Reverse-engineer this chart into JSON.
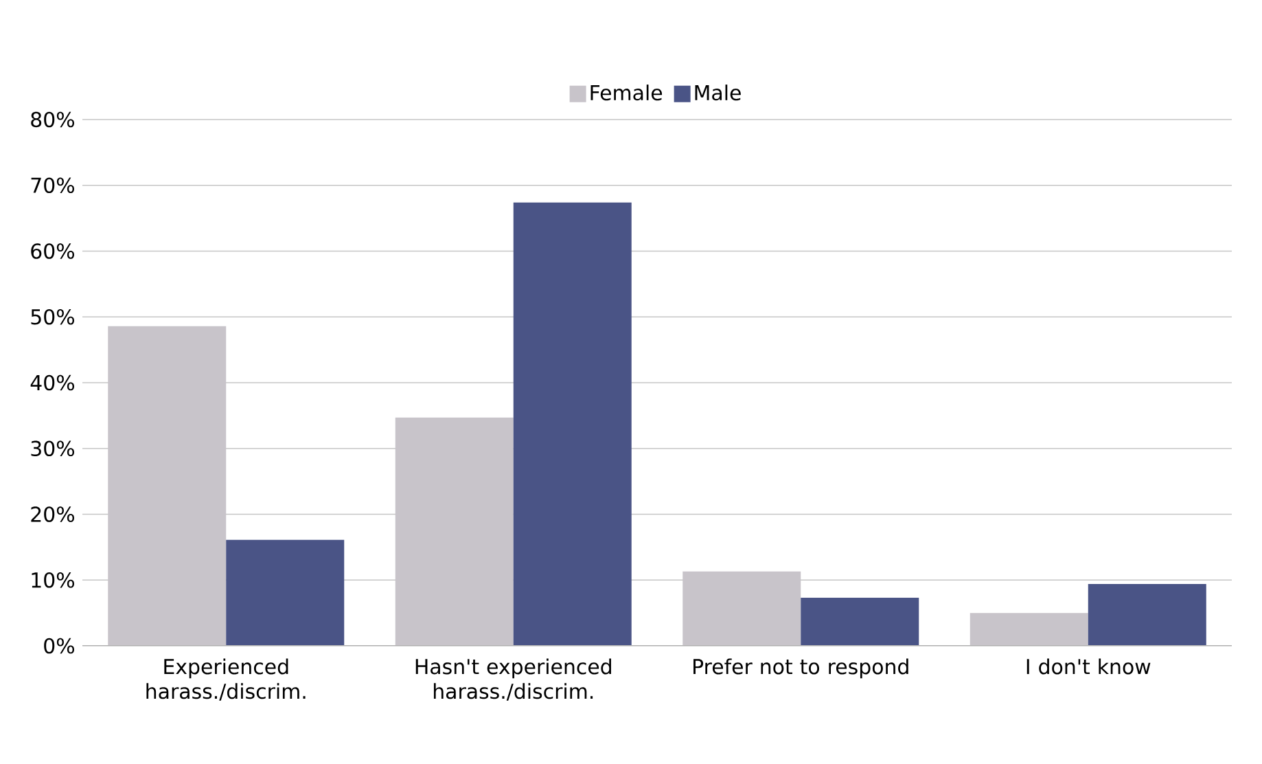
{
  "chart_data": {
    "type": "bar",
    "categories": [
      "Experienced harass./discrim.",
      "Hasn't experienced harass./discrim.",
      "Prefer not to respond",
      "I don't know"
    ],
    "series": [
      {
        "name": "Female",
        "color": "#c8c4ca",
        "values": [
          48.6,
          34.7,
          11.3,
          5.0
        ]
      },
      {
        "name": "Male",
        "color": "#4a5486",
        "values": [
          16.1,
          67.4,
          7.3,
          9.4
        ]
      }
    ],
    "ylim": [
      0,
      80
    ],
    "yticks": [
      {
        "value": 0,
        "label": "0%"
      },
      {
        "value": 10,
        "label": "10%"
      },
      {
        "value": 20,
        "label": "20%"
      },
      {
        "value": 30,
        "label": "30%"
      },
      {
        "value": 40,
        "label": "40%"
      },
      {
        "value": 50,
        "label": "50%"
      },
      {
        "value": 60,
        "label": "60%"
      },
      {
        "value": 70,
        "label": "70%"
      },
      {
        "value": 80,
        "label": "80%"
      }
    ],
    "grid": "y",
    "legend": "top"
  }
}
